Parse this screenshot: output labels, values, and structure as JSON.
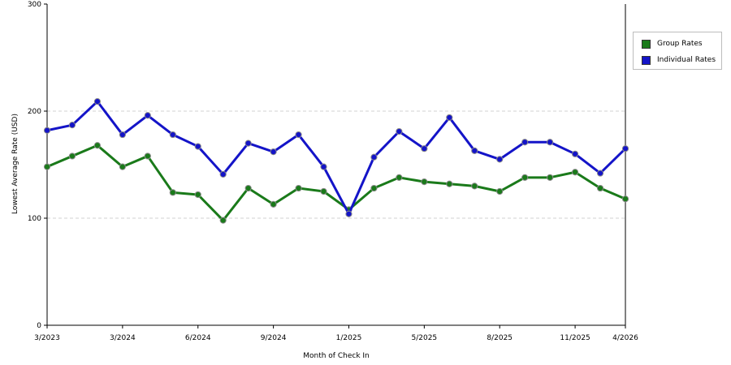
{
  "chart_data": {
    "type": "line",
    "xlabel": "Month of Check In",
    "ylabel": "Lowest Average Rate (USD)",
    "ylim": [
      0,
      300
    ],
    "y_ticks": [
      "0",
      "100",
      "200",
      "300"
    ],
    "x_ticks": [
      {
        "index": 0,
        "label": "3/2023"
      },
      {
        "index": 3,
        "label": "3/2024"
      },
      {
        "index": 6,
        "label": "6/2024"
      },
      {
        "index": 9,
        "label": "9/2024"
      },
      {
        "index": 12,
        "label": "1/2025"
      },
      {
        "index": 15,
        "label": "5/2025"
      },
      {
        "index": 18,
        "label": "8/2025"
      },
      {
        "index": 21,
        "label": "11/2025"
      },
      {
        "index": 23,
        "label": "4/2026"
      }
    ],
    "point_count": 24,
    "grid": "horizontal dashed",
    "legend_position": "right",
    "series": [
      {
        "name": "Group Rates",
        "color": "#1a7a1a",
        "values": [
          148,
          158,
          168,
          148,
          158,
          124,
          122,
          98,
          128,
          113,
          128,
          125,
          108,
          128,
          138,
          134,
          132,
          130,
          125,
          138,
          138,
          143,
          128,
          118
        ]
      },
      {
        "name": "Individual Rates",
        "color": "#1414c8",
        "values": [
          182,
          187,
          209,
          178,
          196,
          178,
          167,
          141,
          170,
          162,
          178,
          148,
          104,
          157,
          181,
          165,
          194,
          163,
          155,
          171,
          171,
          160,
          142,
          165
        ]
      }
    ]
  }
}
